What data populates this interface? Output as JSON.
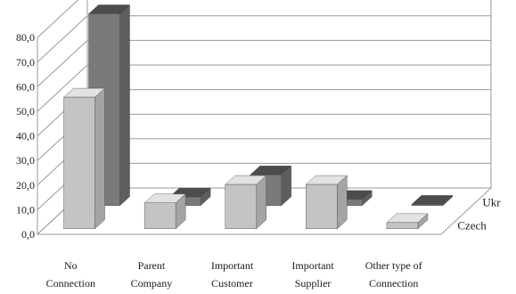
{
  "chart_data": {
    "type": "bar",
    "title": "",
    "xlabel": "",
    "ylabel": "",
    "ylim": [
      0,
      80
    ],
    "yticks": [
      "0,0",
      "10,0",
      "20,0",
      "30,0",
      "40,0",
      "50,0",
      "60,0",
      "70,0",
      "80,0"
    ],
    "grid": true,
    "categories": [
      [
        "No",
        "Connection"
      ],
      [
        "Parent",
        "Company"
      ],
      [
        "Important",
        "Customer"
      ],
      [
        "Important",
        "Supplier"
      ],
      [
        "Other type of",
        "Connection"
      ]
    ],
    "series": [
      {
        "name": "Czech",
        "values": [
          53.5,
          10.5,
          18.0,
          18.0,
          2.5
        ]
      },
      {
        "name": "Ukr",
        "values": [
          78.0,
          3.5,
          12.5,
          2.5,
          0.5
        ]
      }
    ],
    "colors": {
      "Czech_front": "#c4c4c4",
      "Czech_side": "#a4a4a4",
      "Czech_top": "#e2e2e2",
      "Ukr_front": "#7a7a7a",
      "Ukr_side": "#5e5e5e",
      "Ukr_top": "#4c4c4c",
      "grid": "#9a9a9a"
    }
  }
}
